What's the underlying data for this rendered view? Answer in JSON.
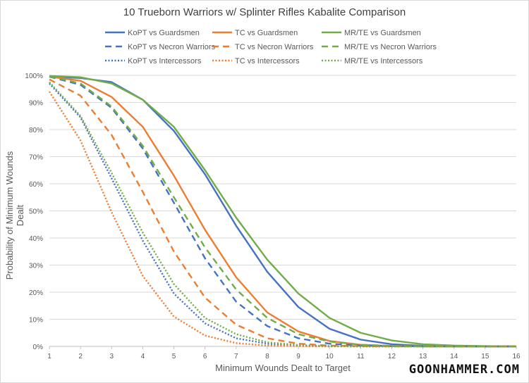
{
  "chart_data": {
    "type": "line",
    "title": "10 Trueborn Warriors w/ Splinter Rifles Kabalite Comparison",
    "xlabel": "Minimum Wounds Dealt to Target",
    "ylabel": "Probability of Minimum Wounds Dealt",
    "x": [
      1,
      2,
      3,
      4,
      5,
      6,
      7,
      8,
      9,
      10,
      11,
      12,
      13,
      14,
      15,
      16
    ],
    "ylim": [
      0,
      100
    ],
    "yticks": [
      "0%",
      "10%",
      "20%",
      "30%",
      "40%",
      "50%",
      "60%",
      "70%",
      "80%",
      "90%",
      "100%"
    ],
    "grid": true,
    "legend_position": "top",
    "colors": {
      "KoPT": "#4472C4",
      "TC": "#ED7D31",
      "MR/TE": "#70AD47"
    },
    "series": [
      {
        "name": "KoPT vs Guardsmen",
        "color": "#4472C4",
        "style": "solid",
        "values": [
          99.5,
          99,
          97.5,
          91,
          79.5,
          63.5,
          44.5,
          27.5,
          14.5,
          6.5,
          2.5,
          0.8,
          0.2,
          0.05,
          0,
          0
        ]
      },
      {
        "name": "TC vs Guardsmen",
        "color": "#ED7D31",
        "style": "solid",
        "values": [
          99.5,
          98,
          92,
          81,
          63,
          43,
          25.5,
          12.5,
          5.5,
          2,
          0.6,
          0.15,
          0.03,
          0,
          0,
          0
        ]
      },
      {
        "name": "MR/TE vs Guardsmen",
        "color": "#70AD47",
        "style": "solid",
        "values": [
          99.8,
          99.3,
          97,
          91,
          81,
          65,
          47.5,
          32,
          19.5,
          10.5,
          5,
          2.2,
          0.8,
          0.3,
          0.1,
          0
        ]
      },
      {
        "name": "KoPT vs Necron Warriors",
        "color": "#4472C4",
        "style": "dash",
        "values": [
          99.5,
          96.5,
          88,
          73,
          53,
          32.5,
          16.5,
          7.5,
          3,
          1,
          0.3,
          0.1,
          0,
          0,
          0,
          0
        ]
      },
      {
        "name": "TC vs Necron Warriors",
        "color": "#ED7D31",
        "style": "dash",
        "values": [
          98.5,
          92.5,
          78,
          57,
          35,
          18,
          8,
          3,
          1,
          0.3,
          0.1,
          0,
          0,
          0,
          0,
          0
        ]
      },
      {
        "name": "MR/TE vs Necron Warriors",
        "color": "#70AD47",
        "style": "dash",
        "values": [
          99.6,
          97,
          88.5,
          74,
          55,
          36.5,
          21,
          10.5,
          4.5,
          1.8,
          0.6,
          0.2,
          0.05,
          0,
          0,
          0
        ]
      },
      {
        "name": "KoPT vs Intercessors",
        "color": "#4472C4",
        "style": "dot",
        "values": [
          97,
          84.5,
          62,
          39,
          19.5,
          8.5,
          3,
          1,
          0.3,
          0.1,
          0,
          0,
          0,
          0,
          0,
          0
        ]
      },
      {
        "name": "TC vs Intercessors",
        "color": "#ED7D31",
        "style": "dot",
        "values": [
          94,
          76,
          49.5,
          26,
          11,
          4,
          1.2,
          0.3,
          0.1,
          0,
          0,
          0,
          0,
          0,
          0,
          0
        ]
      },
      {
        "name": "MR/TE vs Intercessors",
        "color": "#70AD47",
        "style": "dot",
        "values": [
          97.5,
          85,
          64,
          42,
          23,
          10.5,
          4.5,
          1.5,
          0.5,
          0.1,
          0,
          0,
          0,
          0,
          0,
          0
        ]
      }
    ]
  },
  "watermark": "GOONHAMMER.COM"
}
